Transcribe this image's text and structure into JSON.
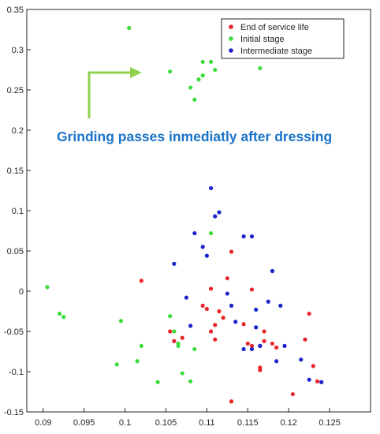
{
  "chart_data": {
    "type": "scatter",
    "title": "",
    "xlabel": "",
    "ylabel": "",
    "xlim": [
      0.088,
      0.13
    ],
    "ylim": [
      -0.15,
      0.35
    ],
    "x_ticks": [
      "0.09",
      "0.095",
      "0.1",
      "0.105",
      "0.11",
      "0.115",
      "0.12",
      "0.125"
    ],
    "x_tick_values": [
      0.09,
      0.095,
      0.1,
      0.105,
      0.11,
      0.115,
      0.12,
      0.125
    ],
    "y_ticks": [
      "-0.15",
      "-0.1",
      "-0.05",
      "0",
      "0.05",
      "0.1",
      "0.15",
      "0.2",
      "0.25",
      "0.3",
      "0.35"
    ],
    "y_tick_values": [
      -0.15,
      -0.1,
      -0.05,
      0,
      0.05,
      0.1,
      0.15,
      0.2,
      0.25,
      0.3,
      0.35
    ],
    "grid": false,
    "legend_position": "top-right",
    "annotation": {
      "text": "Grinding passes inmediatly after dressing",
      "color": "#1a73c8",
      "arrow_color": "#8fd14f"
    },
    "series": [
      {
        "name": "End of service life",
        "color": "#e8252a",
        "points": [
          [
            0.102,
            0.013
          ],
          [
            0.1055,
            -0.05
          ],
          [
            0.106,
            -0.062
          ],
          [
            0.107,
            -0.058
          ],
          [
            0.1095,
            -0.018
          ],
          [
            0.11,
            -0.022
          ],
          [
            0.1105,
            0.003
          ],
          [
            0.111,
            -0.042
          ],
          [
            0.1105,
            -0.05
          ],
          [
            0.111,
            -0.06
          ],
          [
            0.1115,
            -0.025
          ],
          [
            0.112,
            -0.033
          ],
          [
            0.1125,
            0.016
          ],
          [
            0.113,
            0.049
          ],
          [
            0.113,
            -0.137
          ],
          [
            0.1145,
            -0.041
          ],
          [
            0.115,
            -0.065
          ],
          [
            0.1155,
            -0.068
          ],
          [
            0.1155,
            0.002
          ],
          [
            0.1165,
            -0.068
          ],
          [
            0.1165,
            -0.095
          ],
          [
            0.1165,
            -0.098
          ],
          [
            0.117,
            -0.05
          ],
          [
            0.117,
            -0.062
          ],
          [
            0.118,
            -0.065
          ],
          [
            0.1185,
            -0.07
          ],
          [
            0.1205,
            -0.128
          ],
          [
            0.122,
            -0.06
          ],
          [
            0.1225,
            -0.028
          ],
          [
            0.123,
            -0.093
          ],
          [
            0.1235,
            -0.112
          ]
        ]
      },
      {
        "name": "Initial stage",
        "color": "#3ddc3d",
        "points": [
          [
            0.1005,
            0.327
          ],
          [
            0.1055,
            0.273
          ],
          [
            0.108,
            0.253
          ],
          [
            0.1085,
            0.238
          ],
          [
            0.109,
            0.263
          ],
          [
            0.1095,
            0.285
          ],
          [
            0.1095,
            0.268
          ],
          [
            0.1105,
            0.285
          ],
          [
            0.111,
            0.275
          ],
          [
            0.1165,
            0.277
          ],
          [
            0.0905,
            0.005
          ],
          [
            0.092,
            -0.028
          ],
          [
            0.0925,
            -0.032
          ],
          [
            0.0995,
            -0.037
          ],
          [
            0.099,
            -0.091
          ],
          [
            0.102,
            -0.068
          ],
          [
            0.1015,
            -0.087
          ],
          [
            0.104,
            -0.113
          ],
          [
            0.1055,
            -0.031
          ],
          [
            0.106,
            -0.05
          ],
          [
            0.1065,
            -0.065
          ],
          [
            0.1065,
            -0.068
          ],
          [
            0.107,
            -0.102
          ],
          [
            0.108,
            -0.112
          ],
          [
            0.1085,
            -0.072
          ],
          [
            0.1105,
            0.072
          ]
        ]
      },
      {
        "name": "Intermediate stage",
        "color": "#1a24c8",
        "points": [
          [
            0.1085,
            0.072
          ],
          [
            0.1095,
            0.055
          ],
          [
            0.106,
            0.034
          ],
          [
            0.1075,
            -0.008
          ],
          [
            0.108,
            -0.043
          ],
          [
            0.11,
            0.044
          ],
          [
            0.1105,
            0.128
          ],
          [
            0.111,
            0.093
          ],
          [
            0.1115,
            0.098
          ],
          [
            0.1125,
            -0.003
          ],
          [
            0.113,
            -0.018
          ],
          [
            0.1135,
            -0.038
          ],
          [
            0.1145,
            0.068
          ],
          [
            0.1155,
            0.068
          ],
          [
            0.1155,
            -0.072
          ],
          [
            0.116,
            -0.023
          ],
          [
            0.116,
            -0.045
          ],
          [
            0.1165,
            -0.068
          ],
          [
            0.1175,
            -0.013
          ],
          [
            0.118,
            0.025
          ],
          [
            0.119,
            -0.018
          ],
          [
            0.1195,
            -0.068
          ],
          [
            0.1215,
            -0.085
          ],
          [
            0.1225,
            -0.11
          ],
          [
            0.124,
            -0.113
          ],
          [
            0.1145,
            -0.072
          ],
          [
            0.1185,
            -0.087
          ]
        ]
      }
    ]
  }
}
